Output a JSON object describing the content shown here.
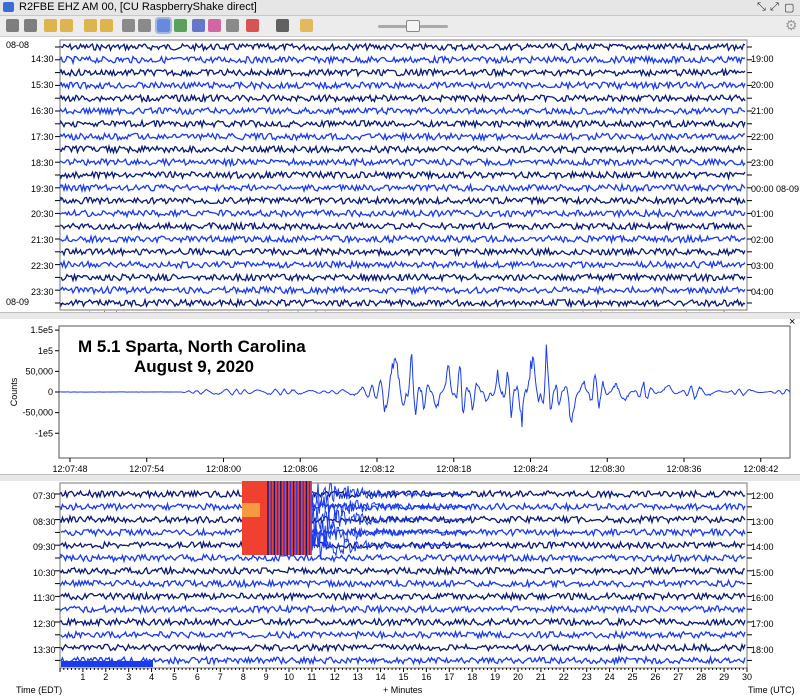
{
  "window": {
    "title": "R2FBE EHZ AM 00, [CU RaspberryShake direct]"
  },
  "toolbar": {
    "buttons": [
      "edit-icon",
      "copy-icon",
      "rewind-icon",
      "back-icon",
      "forward-icon",
      "fastforward-icon",
      "zoom-in-icon",
      "zoom-out-icon",
      "fit-icon",
      "spectrum-icon",
      "spectrogram-icon",
      "colors-icon",
      "print-icon",
      "delete-icon",
      "network-icon",
      "tag-icon",
      "slider-icon"
    ]
  },
  "top_helicorder": {
    "left_labels": [
      "08-08",
      "14:30",
      "15:30",
      "16:30",
      "17:30",
      "18:30",
      "19:30",
      "20:30",
      "21:30",
      "22:30",
      "23:30",
      "08-09"
    ],
    "right_labels": [
      "19:00",
      "20:00",
      "21:00",
      "22:00",
      "23:00",
      "00:00 08-09",
      "01:00",
      "02:00",
      "03:00",
      "04:00"
    ],
    "colors": {
      "dark": "#0a1a7a",
      "light": "#1a3cf0"
    }
  },
  "zoom": {
    "title_line1": "M 5.1  Sparta, North Carolina",
    "title_line2": "August 9, 2020",
    "close_label": "×"
  },
  "chart_data": {
    "type": "line",
    "title": "M 5.1  Sparta, North Carolina August 9, 2020",
    "ylabel": "Counts",
    "xlabel": "",
    "ylim": [
      -160000,
      160000
    ],
    "y_ticks": [
      "1.5e5",
      "1e5",
      "50,000",
      "0",
      "-50,000",
      "-1e5"
    ],
    "x_ticks": [
      "12:07:48",
      "12:07:54",
      "12:08:00",
      "12:08:06",
      "12:08:12",
      "12:08:18",
      "12:08:24",
      "12:08:30",
      "12:08:36",
      "12:08:42"
    ],
    "x_range_seconds": [
      0,
      60
    ],
    "series": [
      {
        "description_points": [
          [
            0,
            0
          ],
          [
            4,
            0
          ],
          [
            8,
            0
          ],
          [
            10,
            0
          ],
          [
            10.5,
            3000
          ],
          [
            12,
            6000
          ],
          [
            14,
            8000
          ],
          [
            16,
            5000
          ],
          [
            18,
            8000
          ],
          [
            20,
            6000
          ],
          [
            22,
            3000
          ],
          [
            24,
            8000
          ],
          [
            26,
            20000
          ],
          [
            28,
            120000
          ],
          [
            29,
            -120000
          ],
          [
            30,
            60000
          ],
          [
            31,
            -60000
          ],
          [
            32,
            80000
          ],
          [
            33,
            -100000
          ],
          [
            34,
            70000
          ],
          [
            35,
            -40000
          ],
          [
            36,
            60000
          ],
          [
            37,
            -90000
          ],
          [
            38,
            100000
          ],
          [
            39,
            -150000
          ],
          [
            40,
            130000
          ],
          [
            41,
            -60000
          ],
          [
            42,
            90000
          ],
          [
            43,
            -40000
          ],
          [
            44,
            60000
          ],
          [
            46,
            -40000
          ],
          [
            48,
            30000
          ],
          [
            50,
            -20000
          ],
          [
            52,
            20000
          ],
          [
            56,
            -10000
          ],
          [
            60,
            10000
          ]
        ]
      }
    ]
  },
  "bottom_helicorder": {
    "left_labels": [
      "07:30",
      "08:30",
      "09:30",
      "10:30",
      "11:30",
      "12:30",
      "13:30"
    ],
    "right_labels": [
      "12:00",
      "13:00",
      "14:00",
      "15:00",
      "16:00",
      "17:00",
      "18:00"
    ],
    "x_ticks": [
      "1",
      "2",
      "3",
      "4",
      "5",
      "6",
      "7",
      "8",
      "9",
      "10",
      "11",
      "12",
      "13",
      "14",
      "15",
      "16",
      "17",
      "18",
      "19",
      "20",
      "21",
      "22",
      "23",
      "24",
      "25",
      "26",
      "27",
      "28",
      "29",
      "30"
    ],
    "left_caption": "Time (EDT)",
    "center_caption": "+ Minutes",
    "right_caption": "Time (UTC)"
  }
}
